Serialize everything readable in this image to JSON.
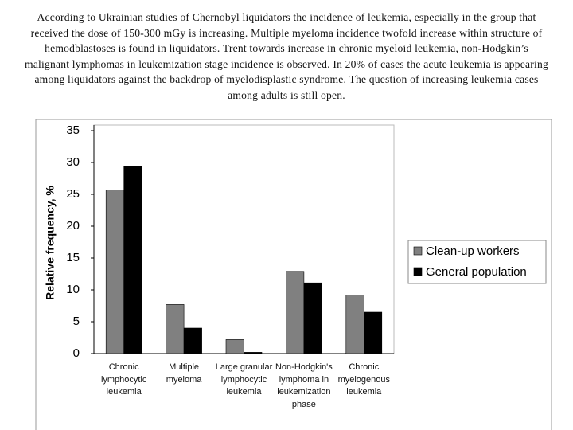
{
  "intro_text": "According to Ukrainian studies of Chernobyl liquidators the incidence of leukemia, especially in the group that received the dose of 150-300 mGy is increasing. Multiple myeloma incidence twofold increase within structure of hemodblastoses is found in liquidators. Trent towards increase in chronic myeloid leukemia, non-Hodgkin’s malignant lymphomas in leukemization stage incidence is observed. In 20% of cases the acute leukemia is appearing among liquidators against the backdrop of myelodisplastic syndrome. The question of increasing leukemia cases among adults is still open.",
  "chart_data": {
    "type": "bar",
    "ylabel": "Relative frequency, %",
    "categories": [
      "Chronic lymphocytic leukemia",
      "Multiple myeloma",
      "Large granular lymphocytic leukemia",
      "Non-Hodgkin's lymphoma in leukemization phase",
      "Chronic myelogenous leukemia"
    ],
    "series": [
      {
        "name": "Clean-up workers",
        "color": "#808080",
        "values": [
          25.7,
          7.7,
          2.2,
          12.9,
          9.2
        ]
      },
      {
        "name": "General population",
        "color": "#000000",
        "values": [
          29.4,
          4.0,
          0.2,
          11.1,
          6.5
        ]
      }
    ],
    "ylim": [
      0,
      35
    ],
    "yticks": [
      0,
      5,
      10,
      15,
      20,
      25,
      30,
      35
    ],
    "grid": false,
    "legend": "right"
  }
}
